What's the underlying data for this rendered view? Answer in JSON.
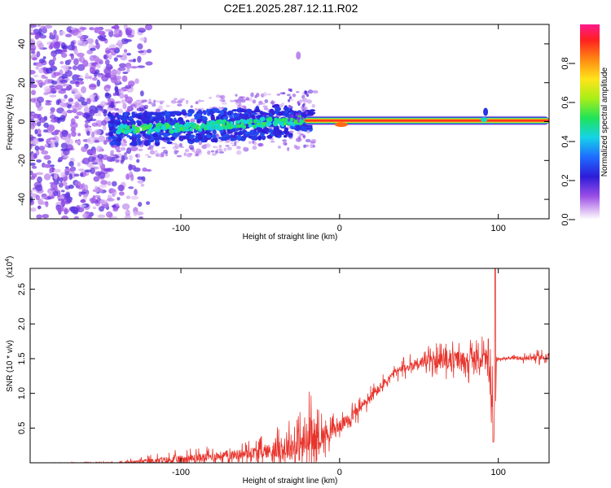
{
  "title": "C2E1.2025.287.12.11.R02",
  "chart_data": [
    {
      "type": "heatmap",
      "name": "spectrogram",
      "xlabel": "Height of straight line (km)",
      "ylabel": "Frequency (Hz)",
      "xlim": [
        -195,
        132
      ],
      "ylim": [
        -50,
        50
      ],
      "xticks": [
        -100,
        0,
        100
      ],
      "yticks": [
        -40,
        -20,
        0,
        20,
        40
      ],
      "description_series": [
        {
          "name": "noise_region",
          "x_range": [
            -195,
            -140
          ],
          "freq_spread": 50
        },
        {
          "name": "signal_ridge",
          "x": [
            -145,
            -120,
            -100,
            -80,
            -60,
            -40,
            -20,
            0,
            10,
            90,
            130
          ],
          "freq": [
            -4,
            -3.5,
            -3,
            -2,
            -1,
            0,
            1,
            0,
            0.5,
            0.5,
            0.5
          ]
        }
      ],
      "colorbar": {
        "label": "Normalized spectral amplitude",
        "ticks": [
          "0.0",
          "0.2",
          "0.4",
          "0.6",
          "0.8"
        ],
        "range": [
          0,
          1
        ]
      }
    },
    {
      "type": "line",
      "name": "snr",
      "xlabel": "Height of straight line (km)",
      "ylabel": "SNR (10 * v/v)",
      "scale_label": "(x10",
      "scale_exp": "4",
      "xlim": [
        -195,
        132
      ],
      "ylim": [
        0,
        2.8
      ],
      "xticks": [
        -100,
        0,
        100
      ],
      "yticks": [
        "0.5",
        "1.0",
        "1.5",
        "2.0",
        "2.5"
      ],
      "color": "#e8342c",
      "envelope": {
        "x": [
          -195,
          -140,
          -120,
          -100,
          -80,
          -60,
          -45,
          -30,
          -20,
          -10,
          0,
          10,
          20,
          35,
          50,
          70,
          85,
          92,
          95,
          97,
          99,
          105,
          132
        ],
        "base": [
          0.0,
          0.0,
          0.02,
          0.05,
          0.09,
          0.13,
          0.17,
          0.22,
          0.3,
          0.4,
          0.52,
          0.72,
          0.95,
          1.3,
          1.45,
          1.48,
          1.48,
          1.5,
          1.2,
          0.3,
          1.5,
          1.5,
          1.52
        ],
        "amp": [
          0.0,
          0.02,
          0.1,
          0.15,
          0.15,
          0.18,
          0.25,
          0.45,
          0.8,
          0.35,
          0.2,
          0.2,
          0.2,
          0.15,
          0.2,
          0.3,
          0.35,
          0.4,
          0.5,
          1.2,
          0.05,
          0.03,
          0.15
        ]
      },
      "peak": {
        "x": 98,
        "y": 2.8
      }
    }
  ]
}
